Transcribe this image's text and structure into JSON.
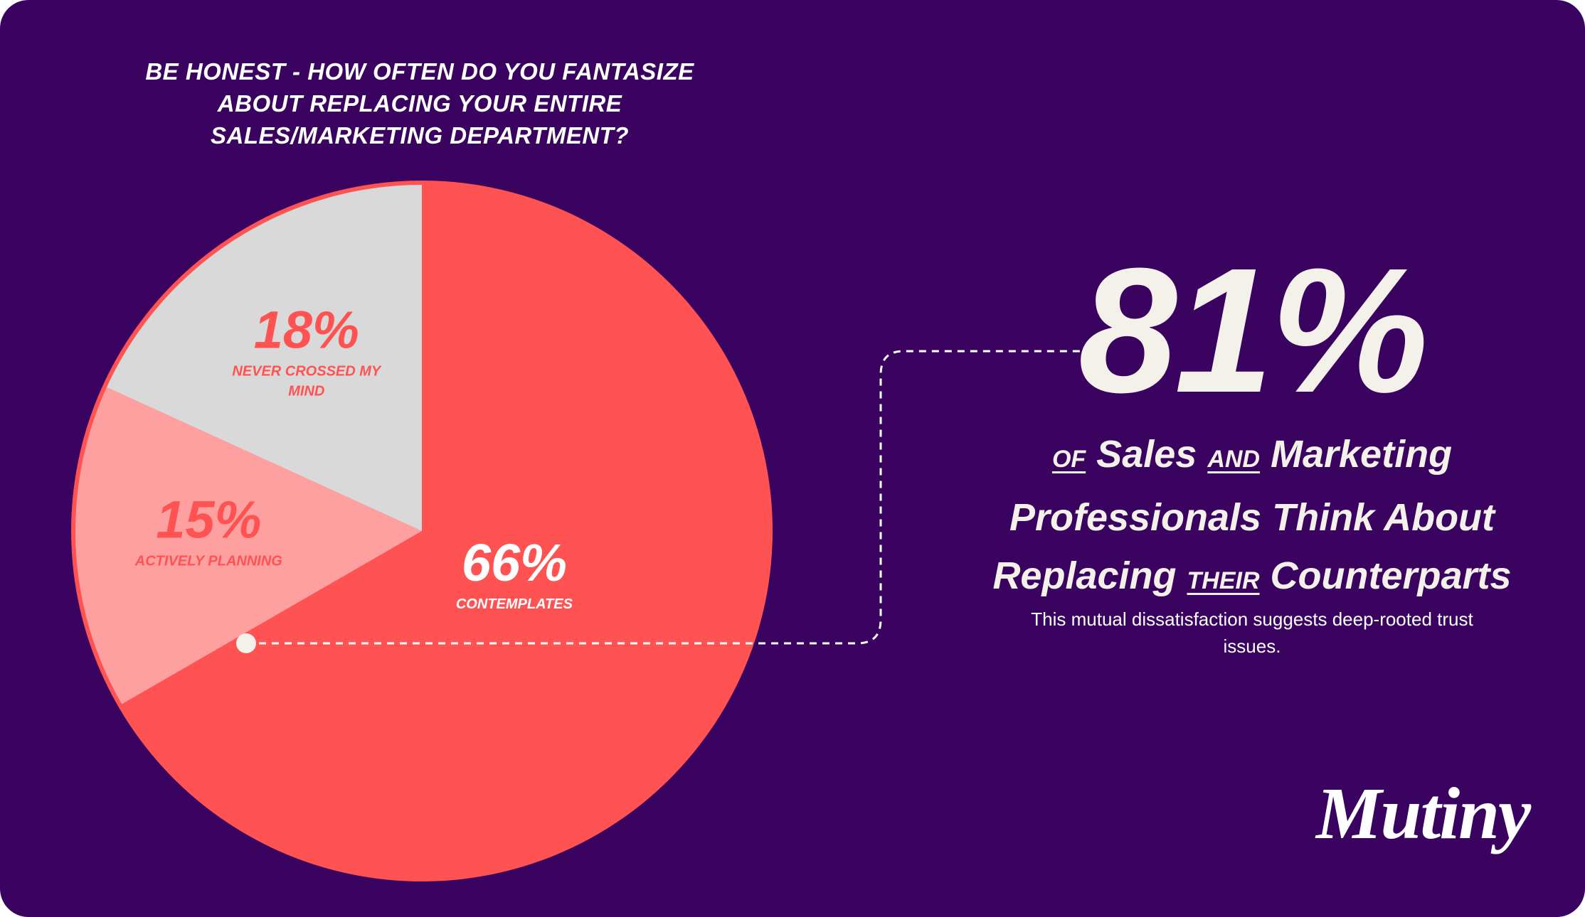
{
  "brand": {
    "name": "Mutiny"
  },
  "colors": {
    "background": "#39035f",
    "contemplates": "#ff5252",
    "actively_planning": "#ffa0a0",
    "never_crossed": "#d9d9d9",
    "text_light": "#f4f1ea"
  },
  "chart_data": {
    "type": "pie",
    "title": "Be honest - how often do you fantasize about replacing your entire sales/marketing department?",
    "slices": [
      {
        "value": "66%",
        "percent": 66,
        "label": "Contemplates"
      },
      {
        "value": "15%",
        "percent": 15,
        "label": "Actively planning"
      },
      {
        "value": "18%",
        "percent": 18,
        "label": "Never crossed my mind"
      }
    ]
  },
  "callout": {
    "stat": "81%",
    "headline_parts": {
      "of": "of",
      "sales": "Sales",
      "and": "and",
      "marketing": "Marketing",
      "professionals": "Professionals Think About",
      "replacing": "Replacing",
      "their": "their",
      "counterparts": "Counterparts"
    },
    "subtext": "This mutual dissatisfaction suggests deep-rooted trust issues."
  }
}
